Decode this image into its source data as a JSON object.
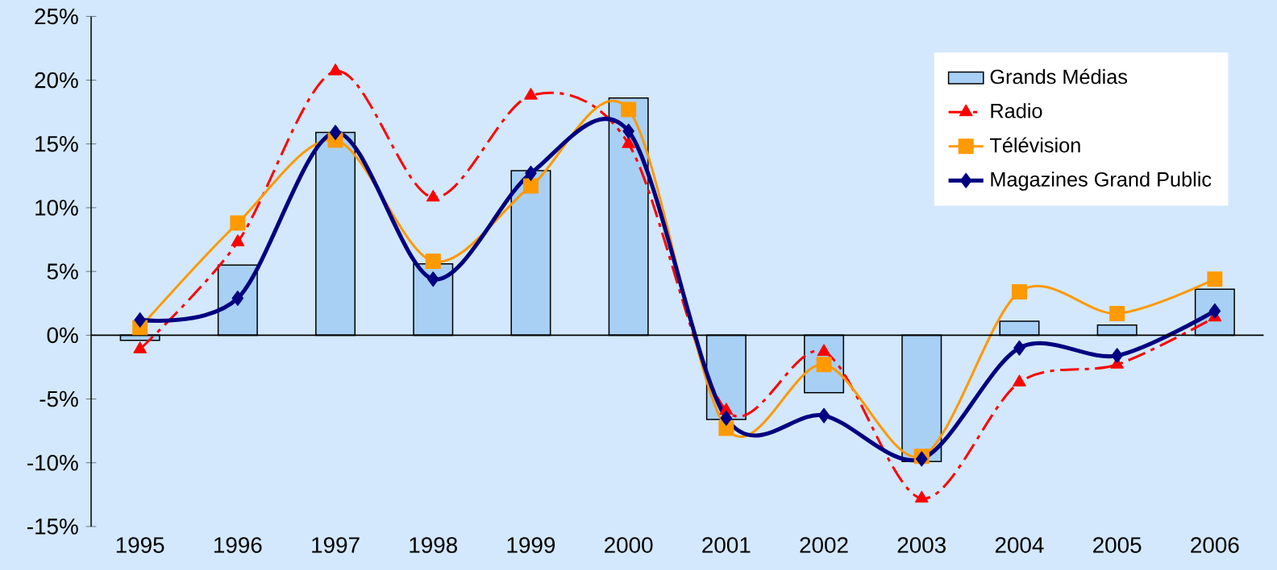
{
  "chart_data": {
    "type": "line",
    "categories": [
      "1995",
      "1996",
      "1997",
      "1998",
      "1999",
      "2000",
      "2001",
      "2002",
      "2003",
      "2004",
      "2005",
      "2006"
    ],
    "series": [
      {
        "name": "Grands Médias",
        "type": "bar",
        "color": "#a8d0f5",
        "values": [
          -0.4,
          5.5,
          15.9,
          5.6,
          12.9,
          18.6,
          -6.6,
          -4.5,
          -9.9,
          1.1,
          0.8,
          3.6
        ]
      },
      {
        "name": "Radio",
        "color": "#ff0000",
        "marker": "triangle",
        "line_style": "dashed",
        "values": [
          -1.1,
          7.3,
          20.7,
          10.8,
          18.8,
          15.0,
          -5.9,
          -1.3,
          -12.8,
          -3.7,
          -2.3,
          1.4
        ]
      },
      {
        "name": "Télévision",
        "color": "#ff9900",
        "marker": "square",
        "line_style": "solid",
        "values": [
          0.6,
          8.8,
          15.3,
          5.8,
          11.7,
          17.7,
          -7.3,
          -2.3,
          -9.5,
          3.4,
          1.7,
          4.4
        ]
      },
      {
        "name": "Magazines Grand Public",
        "color": "#000080",
        "marker": "diamond",
        "line_style": "solid",
        "values": [
          1.2,
          2.9,
          15.9,
          4.4,
          12.7,
          16.0,
          -6.5,
          -6.3,
          -9.7,
          -1.0,
          -1.6,
          1.9
        ]
      }
    ],
    "ylim": [
      -15,
      25
    ],
    "yticks": [
      {
        "value": -15,
        "label": "-15%"
      },
      {
        "value": -10,
        "label": "-10%"
      },
      {
        "value": -5,
        "label": "-5%"
      },
      {
        "value": 0,
        "label": "0%"
      },
      {
        "value": 5,
        "label": "5%"
      },
      {
        "value": 10,
        "label": "10%"
      },
      {
        "value": 15,
        "label": "15%"
      },
      {
        "value": 20,
        "label": "20%"
      },
      {
        "value": 25,
        "label": "25%"
      }
    ],
    "legend": "top right"
  }
}
